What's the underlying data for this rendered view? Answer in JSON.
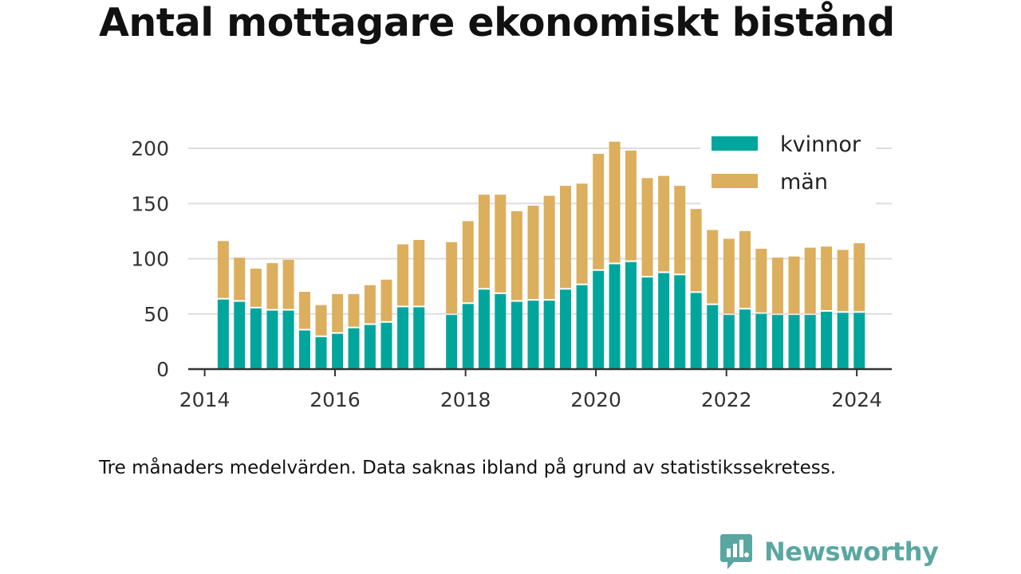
{
  "title": "Antal mottagare ekonomiskt bistånd",
  "caption": "Tre månaders medelvärden. Data saknas ibland på grund av statistikssekretess.",
  "brand": {
    "name": "Newsworthy"
  },
  "colors": {
    "kvinnor": "#00a69c",
    "man": "#dcaf5e",
    "grid": "#dddddd",
    "axis": "#333333",
    "brand": "#5aa7a1"
  },
  "chart_data": {
    "type": "bar",
    "stacked": true,
    "title": "Antal mottagare ekonomiskt bistånd",
    "xlabel": "",
    "ylabel": "",
    "ylim": [
      0,
      200
    ],
    "yticks": [
      0,
      50,
      100,
      150,
      200
    ],
    "xticks": [
      "2014",
      "2016",
      "2018",
      "2020",
      "2022",
      "2024"
    ],
    "xlim": [
      "2013-10-01",
      "2024-07-15"
    ],
    "grid": true,
    "legend_position": "top-right",
    "x": [
      "2014-04-15",
      "2014-07-15",
      "2014-10-15",
      "2015-01-15",
      "2015-04-15",
      "2015-07-15",
      "2015-10-15",
      "2016-01-15",
      "2016-04-15",
      "2016-07-15",
      "2016-10-15",
      "2017-01-15",
      "2017-04-15",
      "2017-10-15",
      "2018-01-15",
      "2018-04-15",
      "2018-07-15",
      "2018-10-15",
      "2019-01-15",
      "2019-04-15",
      "2019-07-15",
      "2019-10-15",
      "2020-01-15",
      "2020-04-15",
      "2020-07-15",
      "2020-10-15",
      "2021-01-15",
      "2021-04-15",
      "2021-07-15",
      "2021-10-15",
      "2022-01-15",
      "2022-04-15",
      "2022-07-15",
      "2022-10-15",
      "2023-01-15",
      "2023-04-15",
      "2023-07-15",
      "2023-10-15",
      "2024-01-15"
    ],
    "series": [
      {
        "name": "kvinnor",
        "values": [
          63,
          61,
          55,
          53,
          53,
          35,
          29,
          32,
          37,
          40,
          42,
          56,
          56,
          49,
          59,
          72,
          68,
          61,
          62,
          62,
          72,
          76,
          89,
          95,
          97,
          83,
          87,
          85,
          69,
          58,
          49,
          54,
          50,
          49,
          49,
          49,
          52,
          51,
          51
        ]
      },
      {
        "name": "män",
        "values": [
          53,
          40,
          36,
          43,
          46,
          35,
          29,
          36,
          31,
          36,
          39,
          57,
          61,
          66,
          75,
          86,
          90,
          82,
          86,
          95,
          94,
          92,
          106,
          111,
          101,
          90,
          88,
          81,
          76,
          68,
          69,
          71,
          59,
          52,
          53,
          61,
          59,
          57,
          63
        ]
      }
    ]
  }
}
